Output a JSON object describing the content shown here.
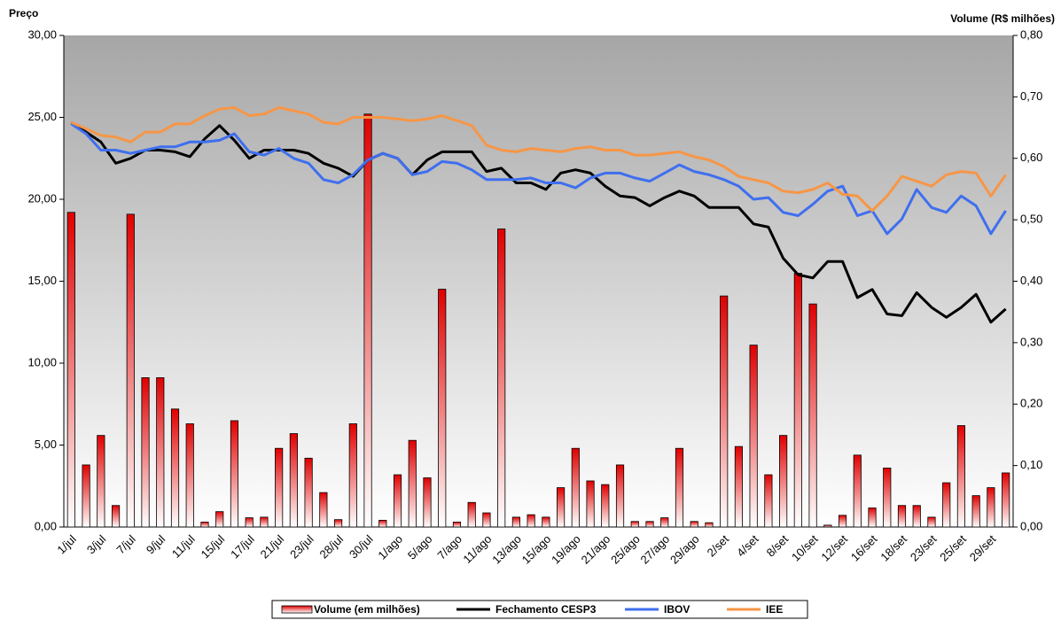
{
  "chart_data": {
    "type": "bar-line",
    "y_label": "Preço",
    "y2_label": "Volume (R$ milhões)",
    "categories": [
      "1/jul",
      null,
      "3/jul",
      null,
      "7/jul",
      null,
      "9/jul",
      null,
      "11/jul",
      null,
      "15/jul",
      null,
      "17/jul",
      null,
      "21/jul",
      null,
      "23/jul",
      null,
      "28/jul",
      null,
      "30/jul",
      null,
      "1/ago",
      null,
      "5/ago",
      null,
      "7/ago",
      null,
      "11/ago",
      null,
      "13/ago",
      null,
      "15/ago",
      null,
      "19/ago",
      null,
      "21/ago",
      null,
      "25/ago",
      null,
      "27/ago",
      null,
      "29/ago",
      null,
      "2/set",
      null,
      "4/set",
      null,
      "8/set",
      null,
      "10/set",
      null,
      "12/set",
      null,
      "16/set",
      null,
      "18/set",
      null,
      "23/set",
      null,
      "25/set",
      null,
      "29/set",
      null
    ],
    "series": [
      {
        "name": "Volume (em milhões)",
        "type": "bar",
        "axis": "y2",
        "color": "#e00000",
        "values": [
          0.512,
          0.101,
          0.149,
          0.035,
          0.509,
          0.243,
          0.243,
          0.192,
          0.168,
          0.008,
          0.025,
          0.173,
          0.015,
          0.016,
          0.128,
          0.152,
          0.112,
          0.056,
          0.012,
          0.168,
          0.672,
          0.011,
          0.085,
          0.141,
          0.08,
          0.387,
          0.008,
          0.04,
          0.023,
          0.485,
          0.016,
          0.02,
          0.016,
          0.064,
          0.128,
          0.075,
          0.069,
          0.101,
          0.009,
          0.009,
          0.015,
          0.128,
          0.009,
          0.007,
          0.376,
          0.131,
          0.296,
          0.085,
          0.149,
          0.413,
          0.363,
          0.003,
          0.019,
          0.117,
          0.031,
          0.096,
          0.035,
          0.035,
          0.016,
          0.072,
          0.165,
          0.051,
          0.064,
          0.088
        ]
      },
      {
        "name": "Fechamento CESP3",
        "type": "line",
        "color": "#000000",
        "values": [
          24.7,
          24.1,
          23.5,
          22.2,
          22.5,
          23.0,
          23.0,
          22.9,
          22.6,
          23.7,
          24.5,
          23.6,
          22.5,
          23.0,
          23.0,
          23.0,
          22.8,
          22.2,
          21.9,
          21.4,
          22.4,
          22.8,
          22.5,
          21.5,
          22.4,
          22.9,
          22.9,
          22.9,
          21.7,
          21.9,
          21.0,
          21.0,
          20.6,
          21.6,
          21.8,
          21.6,
          20.8,
          20.2,
          20.1,
          19.6,
          20.1,
          20.5,
          20.2,
          19.5,
          19.5,
          19.5,
          18.5,
          18.3,
          16.4,
          15.4,
          15.2,
          16.2,
          16.2,
          14.0,
          14.5,
          13.0,
          12.9,
          14.3,
          13.4,
          12.8,
          13.4,
          14.2,
          12.5,
          13.3
        ]
      },
      {
        "name": "IBOV",
        "type": "line",
        "color": "#3f6fef",
        "values": [
          24.6,
          24.0,
          23.0,
          23.0,
          22.8,
          23.0,
          23.2,
          23.2,
          23.5,
          23.5,
          23.6,
          24.0,
          22.9,
          22.7,
          23.1,
          22.5,
          22.2,
          21.2,
          21.0,
          21.5,
          22.4,
          22.8,
          22.5,
          21.5,
          21.7,
          22.3,
          22.2,
          21.8,
          21.2,
          21.2,
          21.2,
          21.3,
          21.0,
          21.0,
          20.7,
          21.3,
          21.6,
          21.6,
          21.3,
          21.1,
          21.6,
          22.1,
          21.7,
          21.5,
          21.2,
          20.8,
          20.0,
          20.1,
          19.2,
          19.0,
          19.7,
          20.5,
          20.8,
          19.0,
          19.3,
          17.9,
          18.8,
          20.6,
          19.5,
          19.2,
          20.2,
          19.6,
          17.9,
          19.3
        ]
      },
      {
        "name": "IEE",
        "type": "line",
        "color": "#f79646",
        "values": [
          24.7,
          24.3,
          23.9,
          23.8,
          23.5,
          24.1,
          24.1,
          24.6,
          24.6,
          25.1,
          25.5,
          25.6,
          25.1,
          25.2,
          25.6,
          25.4,
          25.2,
          24.7,
          24.6,
          25.0,
          25.0,
          25.0,
          24.9,
          24.8,
          24.9,
          25.1,
          24.8,
          24.5,
          23.3,
          23.0,
          22.9,
          23.1,
          23.0,
          22.9,
          23.1,
          23.2,
          23.0,
          23.0,
          22.7,
          22.7,
          22.8,
          22.9,
          22.6,
          22.4,
          22.0,
          21.4,
          21.2,
          21.0,
          20.5,
          20.4,
          20.6,
          21.0,
          20.3,
          20.2,
          19.3,
          20.2,
          21.4,
          21.1,
          20.8,
          21.5,
          21.7,
          21.6,
          20.2,
          21.5
        ]
      }
    ],
    "ylim": [
      0,
      30
    ],
    "yticks": [
      {
        "value": 0,
        "label": "0,00"
      },
      {
        "value": 5,
        "label": "5,00"
      },
      {
        "value": 10,
        "label": "10,00"
      },
      {
        "value": 15,
        "label": "15,00"
      },
      {
        "value": 20,
        "label": "20,00"
      },
      {
        "value": 25,
        "label": "25,00"
      },
      {
        "value": 30,
        "label": "30,00"
      }
    ],
    "y2lim": [
      0,
      0.8
    ],
    "y2ticks": [
      {
        "value": 0,
        "label": "0,00"
      },
      {
        "value": 0.1,
        "label": "0,10"
      },
      {
        "value": 0.2,
        "label": "0,20"
      },
      {
        "value": 0.3,
        "label": "0,30"
      },
      {
        "value": 0.4,
        "label": "0,40"
      },
      {
        "value": 0.5,
        "label": "0,50"
      },
      {
        "value": 0.6,
        "label": "0,60"
      },
      {
        "value": 0.7,
        "label": "0,70"
      },
      {
        "value": 0.8,
        "label": "0,80"
      }
    ],
    "legend": "bottom"
  }
}
